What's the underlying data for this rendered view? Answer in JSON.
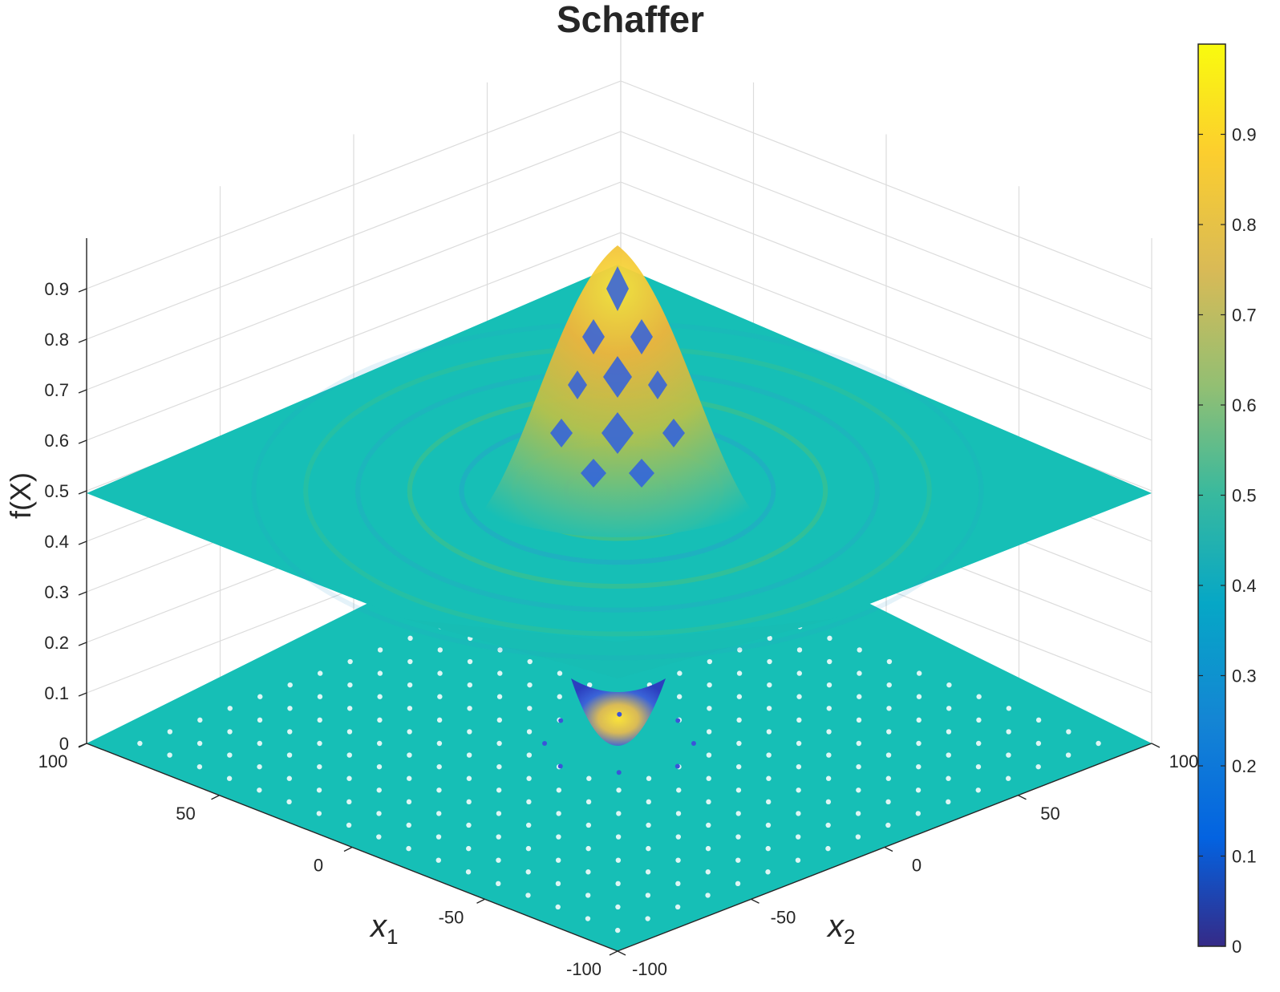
{
  "chart_data": {
    "type": "surface",
    "title": "Schaffer",
    "function": "Schaffer",
    "xlabel": "x1",
    "ylabel": "x2",
    "zlabel": "f(X)",
    "x_range": [
      -100,
      100
    ],
    "y_range": [
      -100,
      100
    ],
    "zlim": [
      0,
      1
    ],
    "x_ticks": [
      "-100",
      "-50",
      "0",
      "50",
      "100"
    ],
    "y_ticks": [
      "-100",
      "-50",
      "0",
      "50",
      "100"
    ],
    "z_ticks": [
      "0",
      "0.1",
      "0.2",
      "0.3",
      "0.4",
      "0.5",
      "0.6",
      "0.7",
      "0.8",
      "0.9"
    ],
    "surface_plane_level": 0.5,
    "surface_peak": 1.0,
    "contour_floor_level": 0,
    "colormap": "parula",
    "colorbar": {
      "location": "right",
      "limits": [
        0,
        1
      ],
      "ticks": [
        "0",
        "0.1",
        "0.2",
        "0.3",
        "0.4",
        "0.5",
        "0.6",
        "0.7",
        "0.8",
        "0.9"
      ]
    },
    "grid": true,
    "colors": {
      "plane": "#16bfb6",
      "peak_yellow": "#f0c430",
      "trough_blue": "#2f5fe0",
      "axis": "#262626",
      "grid": "#dcdcdc"
    }
  }
}
